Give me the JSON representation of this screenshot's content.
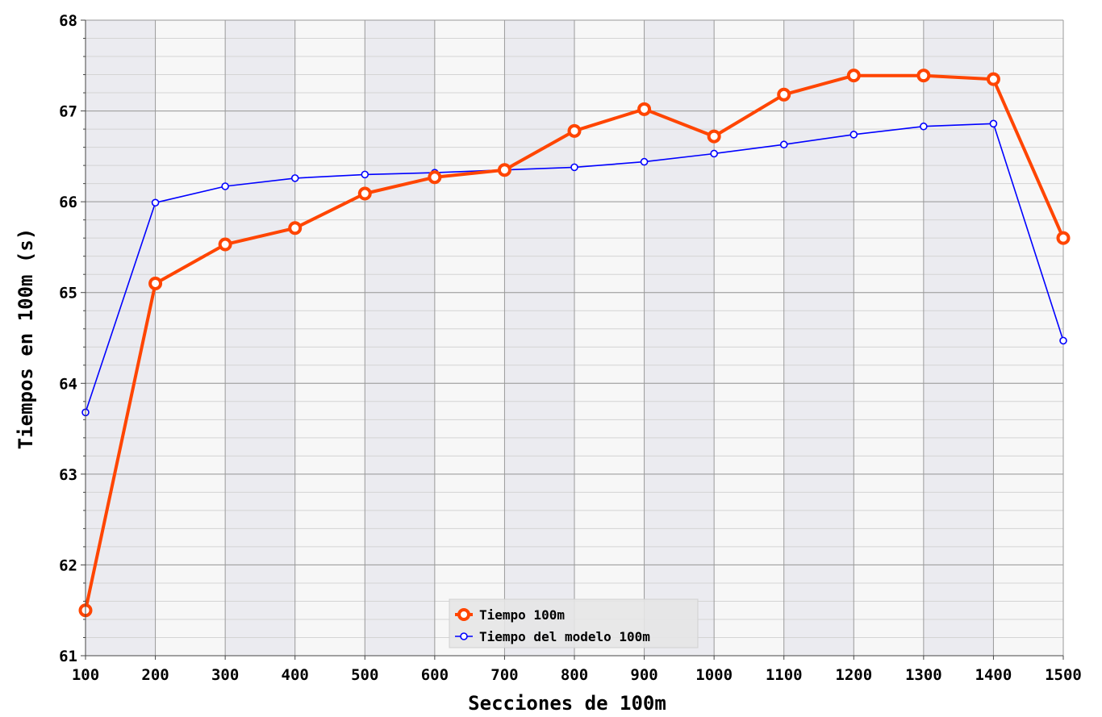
{
  "chart_data": {
    "type": "line",
    "xlabel": "Secciones de 100m",
    "ylabel": "Tiempos en 100m (s)",
    "x": [
      100,
      200,
      300,
      400,
      500,
      600,
      700,
      800,
      900,
      1000,
      1100,
      1200,
      1300,
      1400,
      1500
    ],
    "x_ticks": [
      "100",
      "200",
      "300",
      "400",
      "500",
      "600",
      "700",
      "800",
      "900",
      "1000",
      "1100",
      "1200",
      "1300",
      "1400",
      "1500"
    ],
    "y_ticks": [
      "61",
      "62",
      "63",
      "64",
      "65",
      "66",
      "67",
      "68"
    ],
    "xlim": [
      100,
      1500
    ],
    "ylim": [
      61,
      68
    ],
    "grid": true,
    "legend_position": "bottom-center",
    "series": [
      {
        "name": "Tiempo 100m",
        "color": "#ff4500",
        "values": [
          61.5,
          65.1,
          65.53,
          65.71,
          66.09,
          66.27,
          66.35,
          66.78,
          67.02,
          66.72,
          67.18,
          67.39,
          67.39,
          67.35,
          65.6
        ]
      },
      {
        "name": "Tiempo del modelo 100m",
        "color": "#0000ff",
        "values": [
          63.68,
          65.99,
          66.17,
          66.26,
          66.3,
          66.32,
          66.35,
          66.38,
          66.44,
          66.53,
          66.63,
          66.74,
          66.83,
          66.86,
          64.47
        ]
      }
    ]
  }
}
